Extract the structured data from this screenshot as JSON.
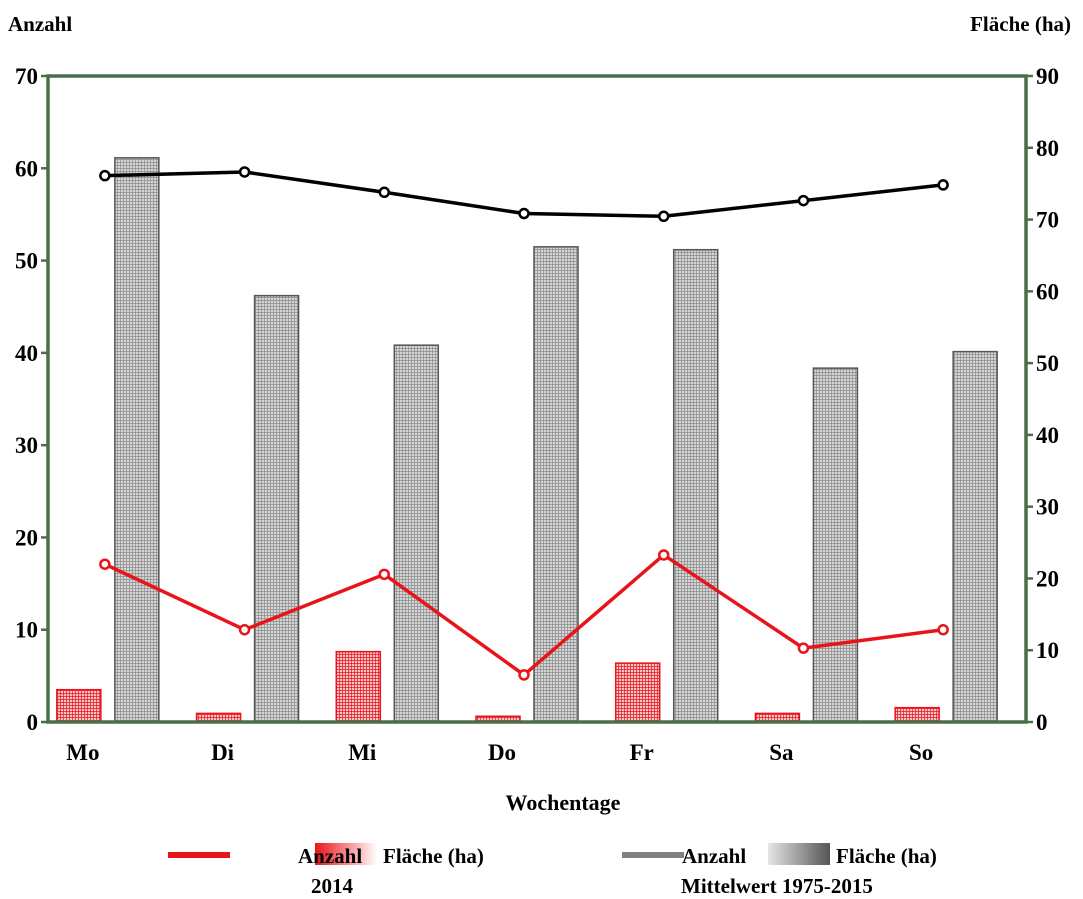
{
  "chart_data": {
    "type": "bar",
    "xlabel": "Wochentage",
    "y_left_label": "Anzahl",
    "y_right_label": "Fläche (ha)",
    "y_left_range": [
      0,
      70
    ],
    "y_right_range": [
      0,
      90
    ],
    "y_left_ticks": [
      "0",
      "10",
      "20",
      "30",
      "40",
      "50",
      "60",
      "70"
    ],
    "y_right_ticks": [
      "0",
      "10",
      "20",
      "30",
      "40",
      "50",
      "60",
      "70",
      "80",
      "90"
    ],
    "categories": [
      "Mo",
      "Di",
      "Mi",
      "Do",
      "Fr",
      "Sa",
      "So"
    ],
    "series": [
      {
        "group": "2014",
        "name": "Fläche (ha)",
        "kind": "bar",
        "axis": "right",
        "color": "#e8141a",
        "values": [
          4.5,
          1.2,
          9.8,
          0.8,
          8.2,
          1.2,
          2.0
        ]
      },
      {
        "group": "Mittelwert 1975-2015",
        "name": "Fläche (ha)",
        "kind": "bar",
        "axis": "right",
        "color": "#808080",
        "values": [
          78.6,
          59.4,
          52.5,
          66.2,
          65.8,
          49.3,
          51.6
        ]
      },
      {
        "group": "2014",
        "name": "Anzahl",
        "kind": "line",
        "axis": "left",
        "color": "#e8141a",
        "values": [
          17.1,
          10.0,
          16.0,
          5.1,
          18.1,
          8.0,
          10.0
        ]
      },
      {
        "group": "Mittelwert 1975-2015",
        "name": "Anzahl",
        "kind": "line",
        "axis": "left",
        "color": "#000000",
        "values": [
          59.2,
          59.6,
          57.4,
          55.1,
          54.8,
          56.5,
          58.2
        ]
      }
    ],
    "legend": {
      "groups": [
        {
          "caption": "2014",
          "line_label": "Anzahl",
          "bar_label": "Fläche (ha)",
          "line_color": "#e8141a"
        },
        {
          "caption": "Mittelwert 1975-2015",
          "line_label": "Anzahl",
          "bar_label": "Fläche (ha)",
          "line_color": "#808080"
        }
      ],
      "position": "bottom"
    },
    "frame_color": "#4a6e4a",
    "grid": false
  }
}
